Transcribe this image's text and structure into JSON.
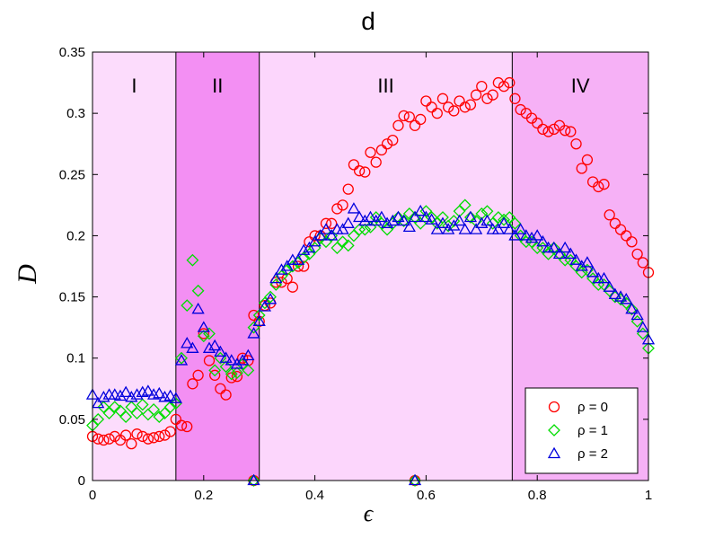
{
  "chart_data": {
    "type": "scatter",
    "title": "d",
    "xlabel": "ϵ",
    "ylabel": "D",
    "xlim": [
      0,
      1
    ],
    "ylim": [
      0,
      0.35
    ],
    "xticks": [
      0,
      0.2,
      0.4,
      0.6,
      0.8,
      1
    ],
    "xtick_labels": [
      "0",
      "0.2",
      "0.4",
      "0.6",
      "0.8",
      "1"
    ],
    "yticks": [
      0,
      0.05,
      0.1,
      0.15,
      0.2,
      0.25,
      0.3,
      0.35
    ],
    "ytick_labels": [
      "0",
      "0.05",
      "0.1",
      "0.15",
      "0.2",
      "0.25",
      "0.3",
      "0.35"
    ],
    "grid": false,
    "legend_position": "bottom-right",
    "regions": [
      {
        "label": "I",
        "x0": 0,
        "x1": 0.15,
        "color": "#fcdcfc"
      },
      {
        "label": "II",
        "x0": 0.15,
        "x1": 0.3,
        "color": "#f38ff3"
      },
      {
        "label": "III",
        "x0": 0.3,
        "x1": 0.755,
        "color": "#fcd6fc"
      },
      {
        "label": "IV",
        "x0": 0.755,
        "x1": 1,
        "color": "#f6b1f6"
      }
    ],
    "series": [
      {
        "name": "ρ = 0",
        "marker": "circle",
        "color": "#ff0000",
        "x": [
          0,
          0.01,
          0.02,
          0.03,
          0.04,
          0.05,
          0.06,
          0.07,
          0.08,
          0.09,
          0.1,
          0.11,
          0.12,
          0.13,
          0.14,
          0.15,
          0.16,
          0.17,
          0.18,
          0.19,
          0.2,
          0.21,
          0.22,
          0.23,
          0.24,
          0.25,
          0.26,
          0.27,
          0.28,
          0.29,
          0.3,
          0.31,
          0.32,
          0.33,
          0.34,
          0.35,
          0.36,
          0.37,
          0.38,
          0.39,
          0.4,
          0.41,
          0.42,
          0.43,
          0.44,
          0.45,
          0.46,
          0.47,
          0.48,
          0.49,
          0.5,
          0.51,
          0.52,
          0.53,
          0.54,
          0.55,
          0.56,
          0.57,
          0.58,
          0.59,
          0.6,
          0.61,
          0.62,
          0.63,
          0.64,
          0.65,
          0.66,
          0.67,
          0.68,
          0.69,
          0.7,
          0.71,
          0.72,
          0.73,
          0.74,
          0.75,
          0.76,
          0.77,
          0.78,
          0.79,
          0.8,
          0.81,
          0.82,
          0.83,
          0.84,
          0.85,
          0.86,
          0.87,
          0.88,
          0.89,
          0.9,
          0.91,
          0.92,
          0.93,
          0.94,
          0.95,
          0.96,
          0.97,
          0.98,
          0.99,
          1.0,
          0.29,
          0.58
        ],
        "y": [
          0.036,
          0.034,
          0.033,
          0.034,
          0.036,
          0.033,
          0.037,
          0.03,
          0.038,
          0.036,
          0.034,
          0.035,
          0.036,
          0.037,
          0.04,
          0.05,
          0.045,
          0.044,
          0.079,
          0.086,
          0.12,
          0.098,
          0.086,
          0.075,
          0.07,
          0.084,
          0.085,
          0.1,
          0.098,
          0.135,
          0.13,
          0.143,
          0.145,
          0.162,
          0.162,
          0.165,
          0.158,
          0.175,
          0.175,
          0.195,
          0.2,
          0.2,
          0.21,
          0.21,
          0.222,
          0.225,
          0.238,
          0.258,
          0.253,
          0.252,
          0.268,
          0.26,
          0.27,
          0.275,
          0.278,
          0.29,
          0.298,
          0.297,
          0.29,
          0.295,
          0.31,
          0.305,
          0.3,
          0.312,
          0.305,
          0.302,
          0.31,
          0.305,
          0.307,
          0.315,
          0.322,
          0.312,
          0.315,
          0.325,
          0.322,
          0.325,
          0.312,
          0.303,
          0.3,
          0.296,
          0.292,
          0.287,
          0.285,
          0.287,
          0.29,
          0.286,
          0.285,
          0.275,
          0.255,
          0.262,
          0.244,
          0.24,
          0.242,
          0.217,
          0.21,
          0.205,
          0.2,
          0.195,
          0.185,
          0.178,
          0.17,
          0,
          0
        ]
      },
      {
        "name": "ρ = 1",
        "marker": "diamond",
        "color": "#00dd00",
        "x": [
          0,
          0.01,
          0.02,
          0.03,
          0.04,
          0.05,
          0.06,
          0.07,
          0.08,
          0.09,
          0.1,
          0.11,
          0.12,
          0.13,
          0.14,
          0.15,
          0.16,
          0.17,
          0.18,
          0.19,
          0.2,
          0.21,
          0.22,
          0.23,
          0.24,
          0.25,
          0.26,
          0.27,
          0.28,
          0.29,
          0.3,
          0.31,
          0.32,
          0.33,
          0.34,
          0.35,
          0.36,
          0.37,
          0.38,
          0.39,
          0.4,
          0.41,
          0.42,
          0.43,
          0.44,
          0.45,
          0.46,
          0.47,
          0.48,
          0.49,
          0.5,
          0.51,
          0.52,
          0.53,
          0.54,
          0.55,
          0.56,
          0.57,
          0.58,
          0.59,
          0.6,
          0.61,
          0.62,
          0.63,
          0.64,
          0.65,
          0.66,
          0.67,
          0.68,
          0.69,
          0.7,
          0.71,
          0.72,
          0.73,
          0.74,
          0.75,
          0.76,
          0.77,
          0.78,
          0.79,
          0.8,
          0.81,
          0.82,
          0.83,
          0.84,
          0.85,
          0.86,
          0.87,
          0.88,
          0.89,
          0.9,
          0.91,
          0.92,
          0.93,
          0.94,
          0.95,
          0.96,
          0.97,
          0.98,
          0.99,
          1.0,
          0.29,
          0.58
        ],
        "y": [
          0.045,
          0.05,
          0.06,
          0.055,
          0.06,
          0.057,
          0.052,
          0.06,
          0.055,
          0.062,
          0.054,
          0.058,
          0.052,
          0.055,
          0.06,
          0.063,
          0.1,
          0.143,
          0.18,
          0.155,
          0.118,
          0.12,
          0.09,
          0.1,
          0.093,
          0.087,
          0.088,
          0.095,
          0.09,
          0.125,
          0.135,
          0.145,
          0.15,
          0.16,
          0.167,
          0.172,
          0.175,
          0.178,
          0.182,
          0.185,
          0.19,
          0.198,
          0.195,
          0.2,
          0.19,
          0.195,
          0.192,
          0.2,
          0.205,
          0.205,
          0.207,
          0.215,
          0.21,
          0.205,
          0.21,
          0.215,
          0.212,
          0.218,
          0.215,
          0.21,
          0.22,
          0.215,
          0.21,
          0.215,
          0.208,
          0.212,
          0.22,
          0.225,
          0.215,
          0.212,
          0.218,
          0.22,
          0.21,
          0.215,
          0.213,
          0.215,
          0.21,
          0.2,
          0.195,
          0.195,
          0.19,
          0.19,
          0.185,
          0.19,
          0.185,
          0.18,
          0.18,
          0.175,
          0.17,
          0.172,
          0.165,
          0.16,
          0.16,
          0.155,
          0.15,
          0.148,
          0.145,
          0.14,
          0.13,
          0.12,
          0.108,
          0,
          0
        ]
      },
      {
        "name": "ρ = 2",
        "marker": "triangle",
        "color": "#0000dd",
        "x": [
          0,
          0.01,
          0.02,
          0.03,
          0.04,
          0.05,
          0.06,
          0.07,
          0.08,
          0.09,
          0.1,
          0.11,
          0.12,
          0.13,
          0.14,
          0.15,
          0.16,
          0.17,
          0.18,
          0.19,
          0.2,
          0.21,
          0.22,
          0.23,
          0.24,
          0.25,
          0.26,
          0.27,
          0.28,
          0.29,
          0.3,
          0.31,
          0.32,
          0.33,
          0.34,
          0.35,
          0.36,
          0.37,
          0.38,
          0.39,
          0.4,
          0.41,
          0.42,
          0.43,
          0.44,
          0.45,
          0.46,
          0.47,
          0.48,
          0.49,
          0.5,
          0.51,
          0.52,
          0.53,
          0.54,
          0.55,
          0.56,
          0.57,
          0.58,
          0.59,
          0.6,
          0.61,
          0.62,
          0.63,
          0.64,
          0.65,
          0.66,
          0.67,
          0.68,
          0.69,
          0.7,
          0.71,
          0.72,
          0.73,
          0.74,
          0.75,
          0.76,
          0.77,
          0.78,
          0.79,
          0.8,
          0.81,
          0.82,
          0.83,
          0.84,
          0.85,
          0.86,
          0.87,
          0.88,
          0.89,
          0.9,
          0.91,
          0.92,
          0.93,
          0.94,
          0.95,
          0.96,
          0.97,
          0.98,
          0.99,
          1.0,
          0.29,
          0.58
        ],
        "y": [
          0.07,
          0.063,
          0.068,
          0.07,
          0.07,
          0.069,
          0.072,
          0.068,
          0.07,
          0.072,
          0.073,
          0.07,
          0.071,
          0.068,
          0.069,
          0.067,
          0.098,
          0.112,
          0.108,
          0.14,
          0.125,
          0.108,
          0.11,
          0.105,
          0.1,
          0.098,
          0.095,
          0.098,
          0.102,
          0.12,
          0.13,
          0.142,
          0.148,
          0.165,
          0.172,
          0.175,
          0.18,
          0.18,
          0.188,
          0.19,
          0.195,
          0.2,
          0.205,
          0.2,
          0.205,
          0.205,
          0.21,
          0.222,
          0.215,
          0.212,
          0.215,
          0.212,
          0.215,
          0.21,
          0.212,
          0.215,
          0.212,
          0.207,
          0.215,
          0.22,
          0.215,
          0.213,
          0.205,
          0.21,
          0.205,
          0.208,
          0.212,
          0.205,
          0.215,
          0.205,
          0.21,
          0.212,
          0.205,
          0.205,
          0.21,
          0.205,
          0.2,
          0.205,
          0.2,
          0.198,
          0.2,
          0.195,
          0.19,
          0.19,
          0.185,
          0.19,
          0.185,
          0.18,
          0.175,
          0.178,
          0.17,
          0.165,
          0.165,
          0.158,
          0.152,
          0.15,
          0.148,
          0.14,
          0.135,
          0.125,
          0.115,
          0,
          0
        ]
      }
    ]
  }
}
